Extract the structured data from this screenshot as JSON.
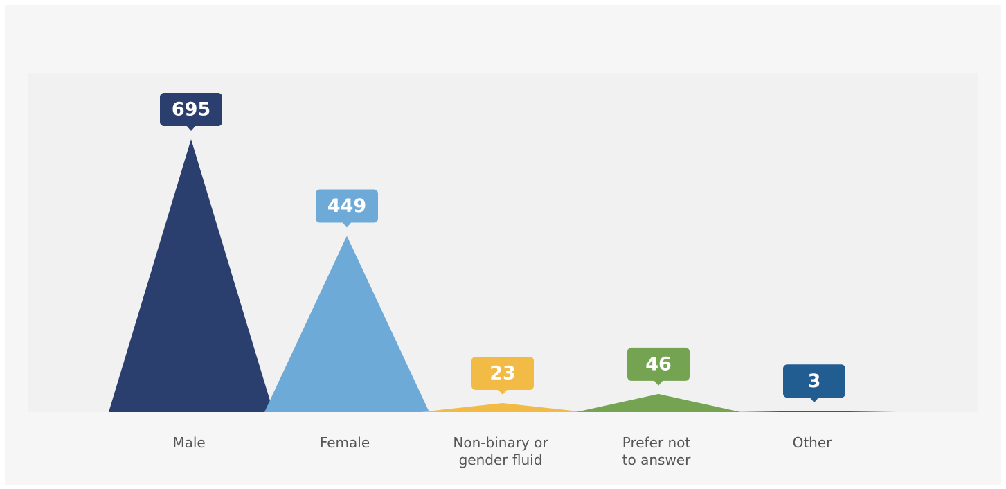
{
  "chart_data": {
    "type": "triangle",
    "categories": [
      "Male",
      "Female",
      "Non-binary or\ngender fluid",
      "Prefer not\nto answer",
      "Other"
    ],
    "values": [
      695,
      449,
      23,
      46,
      3
    ],
    "colors": [
      "#2b3f6e",
      "#6eaad8",
      "#f2bb45",
      "#74a352",
      "#225d91"
    ]
  }
}
